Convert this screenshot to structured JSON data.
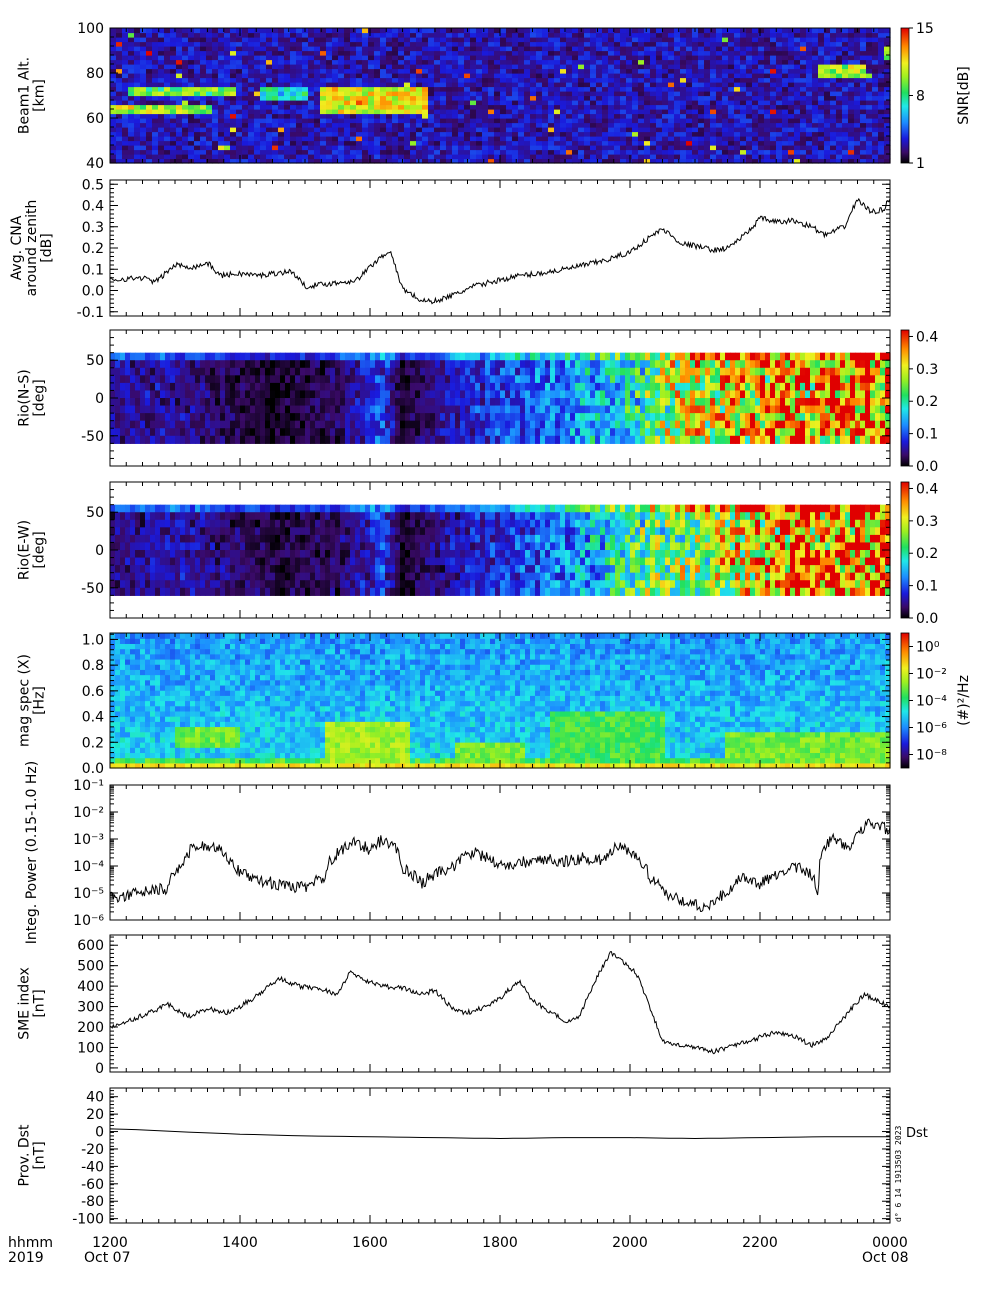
{
  "time_axis": {
    "unit_label": "hhmm",
    "year_label": "2019",
    "start_date": "Oct 07",
    "end_date": "Oct 08",
    "tick_labels": [
      "1200",
      "1400",
      "1600",
      "1800",
      "2000",
      "2200",
      "0000"
    ],
    "range_hours": [
      12,
      24
    ]
  },
  "stamp": "d° 6 14 1913503 2023",
  "chart_data": [
    {
      "id": "beam-alt",
      "type": "heatmap",
      "ylabel": "Beam1 Alt.[km]",
      "ylim": [
        40,
        100
      ],
      "yticks": [
        40,
        60,
        80,
        100
      ],
      "colorbar": {
        "label": "SNR[dB]",
        "range": [
          1,
          15
        ],
        "ticks": [
          "1",
          "8",
          "15"
        ]
      },
      "background_level": 3,
      "features": [
        {
          "t": [
            12.0,
            13.6
          ],
          "alt": [
            62,
            66
          ],
          "level": 10
        },
        {
          "t": [
            12.3,
            13.9
          ],
          "alt": [
            70,
            74
          ],
          "level": 9
        },
        {
          "t": [
            15.2,
            16.9
          ],
          "alt": [
            62,
            74
          ],
          "level": 11
        },
        {
          "t": [
            14.3,
            15.0
          ],
          "alt": [
            68,
            73
          ],
          "level": 7
        },
        {
          "t": [
            22.9,
            23.6
          ],
          "alt": [
            79,
            83
          ],
          "level": 10
        },
        {
          "t": [
            23.9,
            24.0
          ],
          "alt": [
            86,
            92
          ],
          "level": 9
        }
      ]
    },
    {
      "id": "cna",
      "type": "line",
      "ylabel": "Avg. CNA around zenith [dB]",
      "ylim": [
        -0.12,
        0.52
      ],
      "yticks": [
        "-0.1",
        "0.0",
        "0.1",
        "0.2",
        "0.3",
        "0.4",
        "0.5"
      ],
      "yticks_values": [
        -0.1,
        0.0,
        0.1,
        0.2,
        0.3,
        0.4,
        0.5
      ],
      "x": [
        12.0,
        12.5,
        12.7,
        13.0,
        13.3,
        13.5,
        13.7,
        14.0,
        14.3,
        14.5,
        14.8,
        15.0,
        15.3,
        15.6,
        15.8,
        16.1,
        16.3,
        16.5,
        16.8,
        17.0,
        17.3,
        17.6,
        18.0,
        18.3,
        18.6,
        19.0,
        19.3,
        19.6,
        19.8,
        20.0,
        20.3,
        20.5,
        20.8,
        21.0,
        21.3,
        21.5,
        21.8,
        22.0,
        22.3,
        22.5,
        22.8,
        23.0,
        23.3,
        23.5,
        23.7,
        23.9,
        24.0
      ],
      "values": [
        0.05,
        0.06,
        0.04,
        0.12,
        0.11,
        0.13,
        0.07,
        0.08,
        0.07,
        0.08,
        0.09,
        0.02,
        0.03,
        0.04,
        0.05,
        0.14,
        0.19,
        0.01,
        -0.05,
        -0.05,
        -0.02,
        0.02,
        0.05,
        0.07,
        0.08,
        0.1,
        0.12,
        0.14,
        0.16,
        0.18,
        0.25,
        0.29,
        0.22,
        0.21,
        0.19,
        0.2,
        0.27,
        0.34,
        0.32,
        0.33,
        0.3,
        0.26,
        0.3,
        0.43,
        0.37,
        0.38,
        0.44
      ]
    },
    {
      "id": "rio-ns",
      "type": "heatmap",
      "ylabel": "Rio(N-S) [deg]",
      "ylim": [
        -90,
        90
      ],
      "yticks": [
        -50,
        0,
        50
      ],
      "colorbar": {
        "label": "",
        "range": [
          0.0,
          0.42
        ],
        "ticks": [
          "0.0",
          "0.1",
          "0.2",
          "0.3",
          "0.4"
        ]
      },
      "row_extent": [
        -60,
        60
      ],
      "rows": 12,
      "trend_x": [
        12.0,
        13.0,
        14.5,
        15.5,
        16.2,
        16.5,
        17.3,
        18.0,
        19.0,
        20.0,
        20.4,
        21.0,
        22.0,
        23.0,
        24.0
      ],
      "trend_values": [
        0.05,
        0.05,
        0.01,
        0.03,
        0.1,
        0.01,
        0.07,
        0.09,
        0.13,
        0.18,
        0.25,
        0.28,
        0.33,
        0.36,
        0.38
      ]
    },
    {
      "id": "rio-ew",
      "type": "heatmap",
      "ylabel": "Rio(E-W) [deg]",
      "ylim": [
        -90,
        90
      ],
      "yticks": [
        -50,
        0,
        50
      ],
      "colorbar": {
        "label": "",
        "range": [
          0.0,
          0.42
        ],
        "ticks": [
          "0.0",
          "0.1",
          "0.2",
          "0.3",
          "0.4"
        ]
      },
      "row_extent": [
        -60,
        60
      ],
      "rows": 12,
      "trend_x": [
        12.0,
        13.0,
        14.5,
        15.5,
        16.2,
        16.5,
        17.3,
        18.0,
        19.0,
        20.0,
        20.4,
        21.0,
        22.0,
        23.0,
        24.0
      ],
      "trend_values": [
        0.04,
        0.06,
        0.02,
        0.03,
        0.09,
        0.01,
        0.06,
        0.08,
        0.12,
        0.2,
        0.24,
        0.25,
        0.32,
        0.37,
        0.38
      ]
    },
    {
      "id": "mag-spec",
      "type": "heatmap",
      "ylabel": "mag spec (X) [Hz]",
      "ylim": [
        0.0,
        1.05
      ],
      "yticks": [
        "0.0",
        "0.2",
        "0.4",
        "0.6",
        "0.8",
        "1.0"
      ],
      "yticks_values": [
        0.0,
        0.2,
        0.4,
        0.6,
        0.8,
        1.0
      ],
      "colorbar": {
        "label": "(#)²/Hz",
        "range_log10": [
          -9,
          1
        ],
        "ticks": [
          "10⁻⁸",
          "10⁻⁶",
          "10⁻⁴",
          "10⁻²",
          "10⁰"
        ],
        "ticks_log10": [
          -8,
          -6,
          -4,
          -2,
          0
        ]
      },
      "background_log10": -5,
      "features": [
        {
          "t": [
            13.0,
            14.0
          ],
          "f": [
            0.15,
            0.32
          ],
          "log10": -3
        },
        {
          "t": [
            15.3,
            16.6
          ],
          "f": [
            0.0,
            0.35
          ],
          "log10": -2.5
        },
        {
          "t": [
            17.3,
            18.4
          ],
          "f": [
            0.0,
            0.2
          ],
          "log10": -3
        },
        {
          "t": [
            18.8,
            20.5
          ],
          "f": [
            0.0,
            0.45
          ],
          "log10": -3.5
        },
        {
          "t": [
            21.5,
            24.0
          ],
          "f": [
            0.0,
            0.3
          ],
          "log10": -3
        }
      ]
    },
    {
      "id": "integ-power",
      "type": "line",
      "ylabel": "Integ. Power (0.15-1.0 Hz)",
      "yscale": "log",
      "ylim": [
        1e-06,
        0.1
      ],
      "yticks": [
        "10⁻⁶",
        "10⁻⁵",
        "10⁻⁴",
        "10⁻³",
        "10⁻²",
        "10⁻¹"
      ],
      "yticks_values": [
        1e-06,
        1e-05,
        0.0001,
        0.001,
        0.01,
        0.1
      ],
      "x": [
        12.0,
        12.5,
        12.9,
        13.1,
        13.3,
        13.6,
        13.8,
        14.0,
        14.3,
        14.6,
        15.0,
        15.3,
        15.5,
        15.8,
        16.0,
        16.2,
        16.5,
        16.8,
        17.0,
        17.3,
        17.6,
        18.0,
        18.3,
        18.6,
        19.0,
        19.3,
        19.6,
        19.8,
        20.0,
        20.3,
        20.6,
        20.9,
        21.2,
        21.5,
        21.8,
        22.0,
        22.3,
        22.6,
        22.9,
        23.1,
        23.4,
        23.7,
        24.0
      ],
      "values": [
        7e-06,
        1e-05,
        1.5e-05,
        0.0001,
        0.0005,
        0.0006,
        0.0002,
        5e-05,
        3e-05,
        2e-05,
        1.5e-05,
        4e-05,
        0.0003,
        0.0008,
        0.0003,
        0.001,
        8e-05,
        2e-05,
        5e-05,
        0.0001,
        0.0003,
        0.0001,
        0.00012,
        0.0002,
        0.00015,
        0.0002,
        0.00015,
        0.0005,
        0.0003,
        3e-05,
        8e-06,
        4e-06,
        3e-06,
        1e-05,
        4e-05,
        2e-05,
        5e-05,
        0.0001,
        8e-06,
        0.001,
        0.0005,
        0.004,
        0.002
      ]
    },
    {
      "id": "sme",
      "type": "line",
      "ylabel": "SME index [nT]",
      "ylim": [
        -20,
        650
      ],
      "yticks": [
        "0",
        "100",
        "200",
        "300",
        "400",
        "500",
        "600"
      ],
      "yticks_values": [
        0,
        100,
        200,
        300,
        400,
        500,
        600
      ],
      "x": [
        12.0,
        12.3,
        12.6,
        12.9,
        13.2,
        13.5,
        13.8,
        14.0,
        14.3,
        14.6,
        14.9,
        15.2,
        15.5,
        15.7,
        15.9,
        16.2,
        16.5,
        16.8,
        17.0,
        17.3,
        17.5,
        17.8,
        18.0,
        18.3,
        18.5,
        18.8,
        19.0,
        19.2,
        19.5,
        19.7,
        19.9,
        20.1,
        20.3,
        20.5,
        20.8,
        21.0,
        21.3,
        21.6,
        21.9,
        22.2,
        22.5,
        22.8,
        23.0,
        23.3,
        23.6,
        24.0
      ],
      "values": [
        200,
        230,
        270,
        310,
        250,
        290,
        270,
        300,
        360,
        440,
        400,
        390,
        360,
        470,
        430,
        400,
        390,
        360,
        380,
        280,
        270,
        300,
        340,
        430,
        330,
        270,
        230,
        240,
        450,
        560,
        520,
        460,
        300,
        130,
        110,
        100,
        80,
        110,
        140,
        170,
        160,
        110,
        140,
        250,
        360,
        300
      ]
    },
    {
      "id": "dst",
      "type": "line",
      "ylabel": "Prov. Dst [nT]",
      "series_name": "Dst",
      "ylim": [
        -105,
        50
      ],
      "yticks": [
        "-100",
        "-80",
        "-60",
        "-40",
        "-20",
        "0",
        "20",
        "40"
      ],
      "yticks_values": [
        -100,
        -80,
        -60,
        -40,
        -20,
        0,
        20,
        40
      ],
      "x": [
        12,
        12.5,
        13,
        14,
        15,
        16,
        17,
        18,
        19,
        20,
        21,
        22,
        23,
        24
      ],
      "values": [
        3,
        2,
        0,
        -3,
        -5,
        -6,
        -7,
        -8,
        -7,
        -7,
        -8,
        -7,
        -6,
        -6
      ]
    }
  ]
}
